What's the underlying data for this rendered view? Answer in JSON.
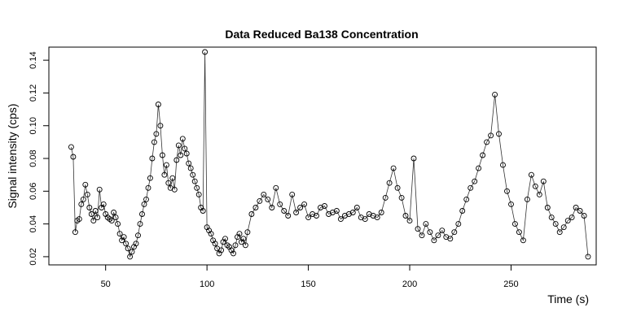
{
  "chart_data": {
    "type": "scatter",
    "style": "points-with-lines",
    "title": "Data Reduced Ba138 Concentration",
    "xlabel": "Time (s)",
    "ylabel": "Signal intensity (cps)",
    "xlim": [
      22,
      292
    ],
    "ylim": [
      0.015,
      0.148
    ],
    "xticks": [
      50,
      100,
      150,
      200,
      250
    ],
    "yticks": [
      0.02,
      0.04,
      0.06,
      0.08,
      0.1,
      0.12,
      0.14
    ],
    "ytick_labels": [
      "0.02",
      "0.04",
      "0.06",
      "0.08",
      "0.10",
      "0.12",
      "0.14"
    ],
    "grid": false,
    "series": [
      {
        "name": "Ba138",
        "x": [
          33,
          34,
          35,
          36,
          37,
          38,
          39,
          40,
          41,
          42,
          43,
          44,
          45,
          46,
          47,
          48,
          49,
          50,
          51,
          52,
          53,
          54,
          55,
          56,
          57,
          58,
          59,
          60,
          61,
          62,
          63,
          64,
          65,
          66,
          67,
          68,
          69,
          70,
          71,
          72,
          73,
          74,
          75,
          76,
          77,
          78,
          79,
          80,
          81,
          82,
          83,
          84,
          85,
          86,
          87,
          88,
          89,
          90,
          91,
          92,
          93,
          94,
          95,
          96,
          97,
          98,
          99,
          100,
          101,
          102,
          103,
          104,
          105,
          106,
          107,
          108,
          109,
          110,
          111,
          112,
          113,
          114,
          115,
          116,
          117,
          118,
          119,
          120,
          122,
          124,
          126,
          128,
          130,
          132,
          134,
          136,
          138,
          140,
          142,
          144,
          146,
          148,
          150,
          152,
          154,
          156,
          158,
          160,
          162,
          164,
          166,
          168,
          170,
          172,
          174,
          176,
          178,
          180,
          182,
          184,
          186,
          188,
          190,
          192,
          194,
          196,
          198,
          200,
          202,
          204,
          206,
          208,
          210,
          212,
          214,
          216,
          218,
          220,
          222,
          224,
          226,
          228,
          230,
          232,
          234,
          236,
          238,
          240,
          242,
          244,
          246,
          248,
          250,
          252,
          254,
          256,
          258,
          260,
          262,
          264,
          266,
          268,
          270,
          272,
          274,
          276,
          278,
          280,
          282,
          284,
          286,
          288
        ],
        "y": [
          0.087,
          0.081,
          0.035,
          0.042,
          0.043,
          0.052,
          0.055,
          0.064,
          0.058,
          0.05,
          0.046,
          0.042,
          0.048,
          0.044,
          0.061,
          0.05,
          0.052,
          0.046,
          0.044,
          0.043,
          0.042,
          0.047,
          0.044,
          0.04,
          0.034,
          0.03,
          0.032,
          0.028,
          0.025,
          0.02,
          0.023,
          0.026,
          0.028,
          0.033,
          0.04,
          0.046,
          0.052,
          0.055,
          0.062,
          0.068,
          0.08,
          0.09,
          0.095,
          0.113,
          0.1,
          0.082,
          0.07,
          0.076,
          0.065,
          0.062,
          0.068,
          0.061,
          0.079,
          0.088,
          0.082,
          0.092,
          0.086,
          0.083,
          0.077,
          0.074,
          0.07,
          0.066,
          0.062,
          0.058,
          0.05,
          0.048,
          0.145,
          0.038,
          0.036,
          0.034,
          0.03,
          0.028,
          0.025,
          0.022,
          0.024,
          0.029,
          0.031,
          0.027,
          0.026,
          0.024,
          0.022,
          0.027,
          0.032,
          0.034,
          0.029,
          0.031,
          0.027,
          0.035,
          0.046,
          0.05,
          0.054,
          0.058,
          0.055,
          0.05,
          0.062,
          0.052,
          0.048,
          0.045,
          0.058,
          0.047,
          0.05,
          0.052,
          0.044,
          0.046,
          0.045,
          0.05,
          0.051,
          0.046,
          0.047,
          0.048,
          0.043,
          0.045,
          0.046,
          0.047,
          0.05,
          0.044,
          0.043,
          0.046,
          0.045,
          0.044,
          0.047,
          0.056,
          0.065,
          0.074,
          0.062,
          0.056,
          0.045,
          0.042,
          0.08,
          0.037,
          0.033,
          0.04,
          0.035,
          0.03,
          0.033,
          0.036,
          0.032,
          0.031,
          0.035,
          0.04,
          0.048,
          0.055,
          0.062,
          0.066,
          0.074,
          0.082,
          0.09,
          0.094,
          0.119,
          0.095,
          0.076,
          0.06,
          0.052,
          0.04,
          0.035,
          0.03,
          0.055,
          0.07,
          0.063,
          0.058,
          0.066,
          0.05,
          0.044,
          0.04,
          0.035,
          0.038,
          0.042,
          0.044,
          0.05,
          0.048,
          0.045,
          0.02
        ]
      }
    ]
  }
}
